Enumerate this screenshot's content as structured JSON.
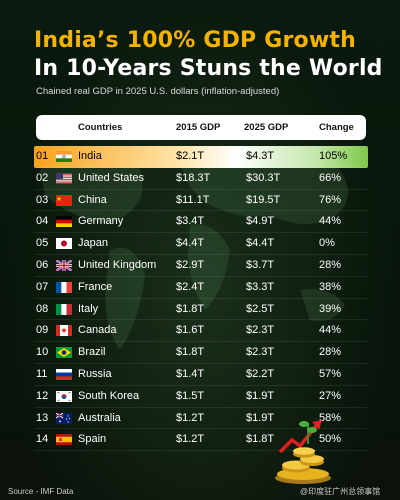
{
  "title_line1": "India’s 100% GDP Growth",
  "title_line2": "In 10-Years Stuns the World",
  "subtitle": "Chained real GDP in 2025 U.S. dollars (inflation-adjusted)",
  "columns": {
    "country": "Countries",
    "gdp2015": "2015 GDP",
    "gdp2025": "2025 GDP",
    "change": "Change"
  },
  "rows": [
    {
      "rank": "01",
      "flag": "india-flag",
      "country": "India",
      "gdp2015": "$2.1T",
      "gdp2025": "$4.3T",
      "change": "105%"
    },
    {
      "rank": "02",
      "flag": "usa-flag",
      "country": "United States",
      "gdp2015": "$18.3T",
      "gdp2025": "$30.3T",
      "change": "66%"
    },
    {
      "rank": "03",
      "flag": "china-flag",
      "country": "China",
      "gdp2015": "$11.1T",
      "gdp2025": "$19.5T",
      "change": "76%"
    },
    {
      "rank": "04",
      "flag": "germany-flag",
      "country": "Germany",
      "gdp2015": "$3.4T",
      "gdp2025": "$4.9T",
      "change": "44%"
    },
    {
      "rank": "05",
      "flag": "japan-flag",
      "country": "Japan",
      "gdp2015": "$4.4T",
      "gdp2025": "$4.4T",
      "change": "0%"
    },
    {
      "rank": "06",
      "flag": "uk-flag",
      "country": "United Kingdom",
      "gdp2015": "$2.9T",
      "gdp2025": "$3.7T",
      "change": "28%"
    },
    {
      "rank": "07",
      "flag": "france-flag",
      "country": "France",
      "gdp2015": "$2.4T",
      "gdp2025": "$3.3T",
      "change": "38%"
    },
    {
      "rank": "08",
      "flag": "italy-flag",
      "country": "Italy",
      "gdp2015": "$1.8T",
      "gdp2025": "$2.5T",
      "change": "39%"
    },
    {
      "rank": "09",
      "flag": "canada-flag",
      "country": "Canada",
      "gdp2015": "$1.6T",
      "gdp2025": "$2.3T",
      "change": "44%"
    },
    {
      "rank": "10",
      "flag": "brazil-flag",
      "country": "Brazil",
      "gdp2015": "$1.8T",
      "gdp2025": "$2.3T",
      "change": "28%"
    },
    {
      "rank": "11",
      "flag": "russia-flag",
      "country": "Russia",
      "gdp2015": "$1.4T",
      "gdp2025": "$2.2T",
      "change": "57%"
    },
    {
      "rank": "12",
      "flag": "south-korea-flag",
      "country": "South Korea",
      "gdp2015": "$1.5T",
      "gdp2025": "$1.9T",
      "change": "27%"
    },
    {
      "rank": "13",
      "flag": "australia-flag",
      "country": "Australia",
      "gdp2015": "$1.2T",
      "gdp2025": "$1.9T",
      "change": "58%"
    },
    {
      "rank": "14",
      "flag": "spain-flag",
      "country": "Spain",
      "gdp2015": "$1.2T",
      "gdp2025": "$1.8T",
      "change": "50%"
    }
  ],
  "source": "Source - IMF Data",
  "watermark": "@印度驻广州总领事馆",
  "colors": {
    "title_accent": "#f3b300",
    "highlight_start": "#f7a21a",
    "highlight_end": "#7ec847"
  }
}
